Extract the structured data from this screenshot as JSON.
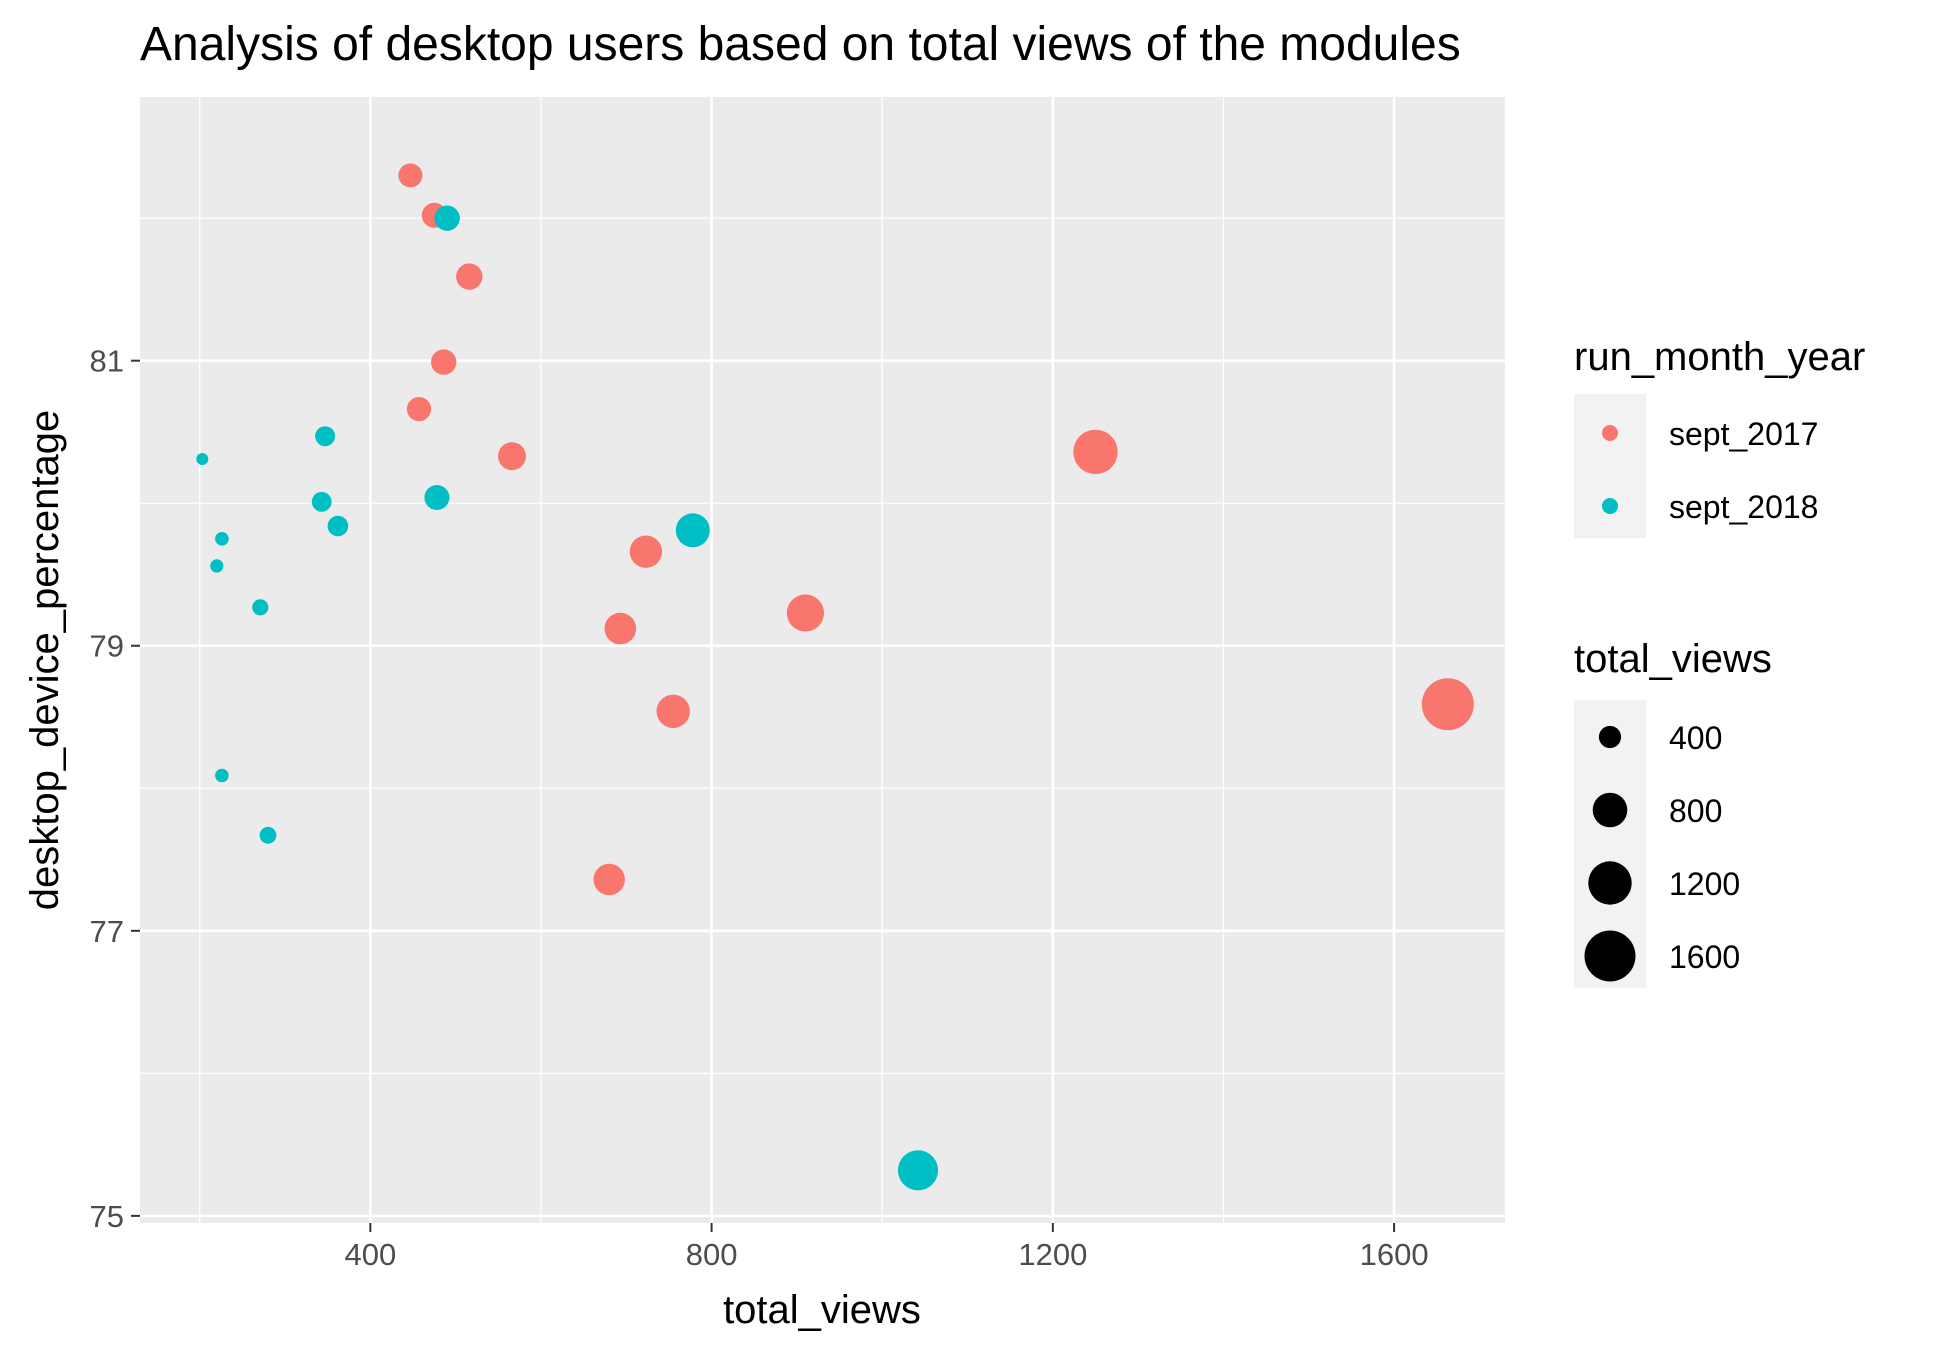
{
  "chart_data": {
    "type": "scatter",
    "title": "Analysis of desktop users based on total views of the modules",
    "xlabel": "total_views",
    "ylabel": "desktop_device_percentage",
    "xlim": [
      130,
      1730
    ],
    "ylim": [
      74.95,
      82.85
    ],
    "x_ticks": [
      400,
      800,
      1200,
      1600
    ],
    "x_minor": [
      200,
      600,
      1000,
      1400
    ],
    "y_ticks": [
      75,
      77,
      79,
      81
    ],
    "y_minor": [
      76,
      78,
      80,
      82
    ],
    "grid": true,
    "background": "#EBEBEB",
    "size_legend": {
      "title": "total_views",
      "values": [
        400,
        800,
        1200,
        1600
      ],
      "labels": [
        "400",
        "800",
        "1200",
        "1600"
      ]
    },
    "color_legend": {
      "title": "run_month_year",
      "position": "right"
    },
    "series": [
      {
        "name": "sept_2017",
        "color": "#F8766D",
        "points": [
          {
            "x": 447,
            "y": 82.3,
            "size": 447
          },
          {
            "x": 475,
            "y": 82.02,
            "size": 475
          },
          {
            "x": 516,
            "y": 81.59,
            "size": 516
          },
          {
            "x": 486,
            "y": 80.99,
            "size": 486
          },
          {
            "x": 457,
            "y": 80.66,
            "size": 457
          },
          {
            "x": 566,
            "y": 80.33,
            "size": 566
          },
          {
            "x": 1250,
            "y": 80.36,
            "size": 1250
          },
          {
            "x": 723,
            "y": 79.66,
            "size": 723
          },
          {
            "x": 693,
            "y": 79.12,
            "size": 693
          },
          {
            "x": 910,
            "y": 79.23,
            "size": 910
          },
          {
            "x": 755,
            "y": 78.54,
            "size": 755
          },
          {
            "x": 1663,
            "y": 78.59,
            "size": 1663
          },
          {
            "x": 680,
            "y": 77.36,
            "size": 680
          }
        ]
      },
      {
        "name": "sept_2018",
        "color": "#00BFC4",
        "points": [
          {
            "x": 490,
            "y": 82.0,
            "size": 490
          },
          {
            "x": 347,
            "y": 80.47,
            "size": 347
          },
          {
            "x": 203,
            "y": 80.31,
            "size": 203
          },
          {
            "x": 343,
            "y": 80.01,
            "size": 343
          },
          {
            "x": 478,
            "y": 80.04,
            "size": 478
          },
          {
            "x": 362,
            "y": 79.84,
            "size": 362
          },
          {
            "x": 778,
            "y": 79.81,
            "size": 778
          },
          {
            "x": 226,
            "y": 79.75,
            "size": 226
          },
          {
            "x": 220,
            "y": 79.56,
            "size": 220
          },
          {
            "x": 271,
            "y": 79.27,
            "size": 271
          },
          {
            "x": 226,
            "y": 78.09,
            "size": 226
          },
          {
            "x": 280,
            "y": 77.67,
            "size": 280
          },
          {
            "x": 1042,
            "y": 75.32,
            "size": 1042
          }
        ]
      }
    ]
  }
}
